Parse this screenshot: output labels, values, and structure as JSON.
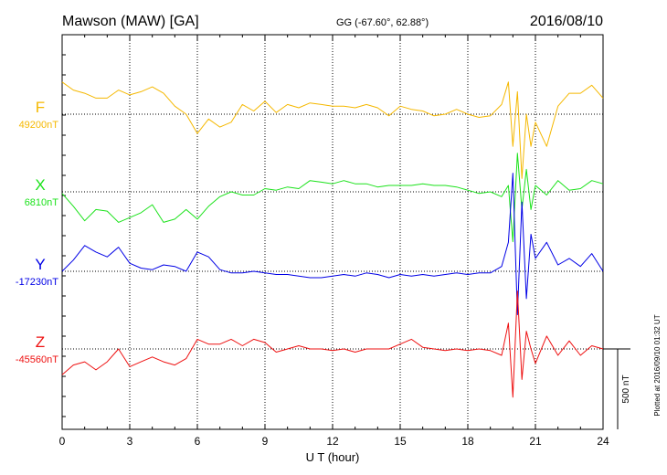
{
  "chart_data": {
    "type": "line",
    "title": "Mawson (MAW)  [GA]",
    "coords": "GG (-67.60°,  62.88°)",
    "date": "2016/08/10",
    "xlabel": "U T (hour)",
    "xlim": [
      0,
      24
    ],
    "xticks": [
      "0",
      "3",
      "6",
      "9",
      "12",
      "15",
      "18",
      "21",
      "24"
    ],
    "grid": true,
    "scale_label": "500 nT",
    "scale_nT": 500,
    "footer": "Plotted at 2016/09/10 01:32 UT",
    "series": [
      {
        "name": "F",
        "baseline_label": "49200nT",
        "color": "#f5b800",
        "x": [
          0,
          0.5,
          1,
          1.5,
          2,
          2.5,
          3,
          3.5,
          4,
          4.5,
          5,
          5.5,
          6,
          6.5,
          7,
          7.5,
          8,
          8.5,
          9,
          9.5,
          10,
          10.5,
          11,
          11.5,
          12,
          12.5,
          13,
          13.5,
          14,
          14.5,
          15,
          15.5,
          16,
          16.5,
          17,
          17.5,
          18,
          18.5,
          19,
          19.5,
          19.8,
          20,
          20.2,
          20.4,
          20.6,
          20.8,
          21,
          21.5,
          22,
          22.5,
          23,
          23.5,
          24
        ],
        "y": [
          49400,
          49350,
          49330,
          49300,
          49300,
          49350,
          49320,
          49340,
          49370,
          49330,
          49250,
          49200,
          49080,
          49170,
          49120,
          49150,
          49260,
          49220,
          49280,
          49210,
          49260,
          49240,
          49270,
          49260,
          49250,
          49250,
          49240,
          49260,
          49240,
          49190,
          49250,
          49230,
          49220,
          49190,
          49200,
          49230,
          49200,
          49180,
          49190,
          49260,
          49400,
          49000,
          49340,
          48800,
          49200,
          49000,
          49150,
          49000,
          49250,
          49330,
          49330,
          49380,
          49300
        ]
      },
      {
        "name": "X",
        "baseline_label": "6810nT",
        "color": "#1be21b",
        "x": [
          0,
          0.5,
          1,
          1.5,
          2,
          2.5,
          3,
          3.5,
          4,
          4.5,
          5,
          5.5,
          6,
          6.5,
          7,
          7.5,
          8,
          8.5,
          9,
          9.5,
          10,
          10.5,
          11,
          11.5,
          12,
          12.5,
          13,
          13.5,
          14,
          14.5,
          15,
          15.5,
          16,
          16.5,
          17,
          17.5,
          18,
          18.5,
          19,
          19.5,
          19.8,
          20,
          20.2,
          20.4,
          20.6,
          20.8,
          21,
          21.5,
          22,
          22.5,
          23,
          23.5,
          24
        ],
        "y": [
          6800,
          6720,
          6630,
          6700,
          6690,
          6620,
          6650,
          6680,
          6730,
          6620,
          6640,
          6700,
          6640,
          6720,
          6780,
          6810,
          6790,
          6790,
          6830,
          6820,
          6840,
          6830,
          6880,
          6870,
          6860,
          6880,
          6860,
          6860,
          6840,
          6850,
          6850,
          6850,
          6860,
          6850,
          6850,
          6840,
          6820,
          6800,
          6810,
          6780,
          6850,
          6500,
          7050,
          6700,
          6950,
          6700,
          6850,
          6790,
          6880,
          6820,
          6830,
          6880,
          6860
        ]
      },
      {
        "name": "Y",
        "baseline_label": "-17230nT",
        "color": "#0000e6",
        "x": [
          0,
          0.5,
          1,
          1.5,
          2,
          2.5,
          3,
          3.5,
          4,
          4.5,
          5,
          5.5,
          6,
          6.5,
          7,
          7.5,
          8,
          8.5,
          9,
          9.5,
          10,
          10.5,
          11,
          11.5,
          12,
          12.5,
          13,
          13.5,
          14,
          14.5,
          15,
          15.5,
          16,
          16.5,
          17,
          17.5,
          18,
          18.5,
          19,
          19.5,
          19.8,
          20,
          20.2,
          20.4,
          20.6,
          20.8,
          21,
          21.5,
          22,
          22.5,
          23,
          23.5,
          24
        ],
        "y": [
          -17230,
          -17160,
          -17070,
          -17110,
          -17140,
          -17080,
          -17180,
          -17210,
          -17220,
          -17190,
          -17200,
          -17230,
          -17110,
          -17140,
          -17220,
          -17240,
          -17240,
          -17230,
          -17240,
          -17250,
          -17250,
          -17260,
          -17270,
          -17270,
          -17260,
          -17250,
          -17260,
          -17240,
          -17250,
          -17270,
          -17250,
          -17260,
          -17250,
          -17260,
          -17250,
          -17240,
          -17250,
          -17240,
          -17240,
          -17200,
          -17050,
          -16620,
          -17500,
          -16800,
          -17400,
          -17000,
          -17150,
          -17050,
          -17190,
          -17150,
          -17200,
          -17120,
          -17230
        ]
      },
      {
        "name": "Z",
        "baseline_label": "-45560nT",
        "color": "#ee1111",
        "x": [
          0,
          0.5,
          1,
          1.5,
          2,
          2.5,
          3,
          3.5,
          4,
          4.5,
          5,
          5.5,
          6,
          6.5,
          7,
          7.5,
          8,
          8.5,
          9,
          9.5,
          10,
          10.5,
          11,
          11.5,
          12,
          12.5,
          13,
          13.5,
          14,
          14.5,
          15,
          15.5,
          16,
          16.5,
          17,
          17.5,
          18,
          18.5,
          19,
          19.5,
          19.8,
          20,
          20.2,
          20.4,
          20.6,
          20.8,
          21,
          21.5,
          22,
          22.5,
          23,
          23.5,
          24
        ],
        "y": [
          -45720,
          -45660,
          -45640,
          -45690,
          -45640,
          -45560,
          -45670,
          -45640,
          -45610,
          -45640,
          -45660,
          -45620,
          -45500,
          -45530,
          -45530,
          -45500,
          -45540,
          -45500,
          -45520,
          -45580,
          -45560,
          -45540,
          -45560,
          -45560,
          -45570,
          -45560,
          -45580,
          -45560,
          -45560,
          -45560,
          -45530,
          -45500,
          -45550,
          -45560,
          -45570,
          -45560,
          -45570,
          -45560,
          -45570,
          -45600,
          -45400,
          -45860,
          -45200,
          -45750,
          -45450,
          -45560,
          -45650,
          -45480,
          -45600,
          -45510,
          -45600,
          -45540,
          -45560
        ]
      }
    ]
  }
}
